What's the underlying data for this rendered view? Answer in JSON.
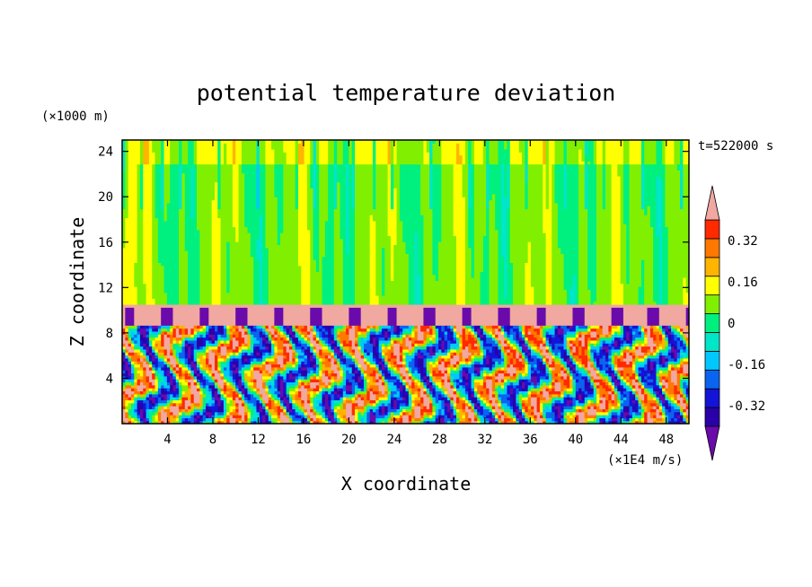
{
  "chart_data": {
    "type": "heatmap",
    "title": "potential temperature deviation",
    "xlabel": "X coordinate",
    "ylabel": "Z coordinate",
    "x_unit": "(×1E4 m/s)",
    "y_unit": "(×1000 m)",
    "time_label": "t=522000 s",
    "xlim": [
      0,
      50
    ],
    "ylim": [
      0,
      25
    ],
    "x_ticks": [
      4,
      8,
      12,
      16,
      20,
      24,
      28,
      32,
      36,
      40,
      44,
      48
    ],
    "y_ticks": [
      4,
      8,
      12,
      16,
      20,
      24
    ],
    "grid": false,
    "colorbar": {
      "levels": [
        -0.48,
        -0.4,
        -0.32,
        -0.24,
        -0.16,
        -0.08,
        0,
        0.08,
        0.16,
        0.24,
        0.32,
        0.4,
        0.48
      ],
      "colors": [
        "#6a0aaa",
        "#2a00a8",
        "#1414d6",
        "#0a64f0",
        "#00c8ff",
        "#00e6c8",
        "#00f080",
        "#80f000",
        "#ffff00",
        "#ffb400",
        "#ff7800",
        "#ff2a00",
        "#f0a8a0"
      ],
      "labels": [
        "0.32",
        "0.16",
        "0",
        "-0.16",
        "-0.32"
      ],
      "label_values": [
        0.32,
        0.16,
        0,
        -0.16,
        -0.32
      ],
      "extend": "both"
    },
    "regions": [
      {
        "layer": "upper",
        "z_range": [
          10.5,
          25
        ],
        "typical_value": 0.05,
        "description_values": [
          0.0,
          0.1,
          -0.05
        ]
      },
      {
        "layer": "inversion",
        "z_range": [
          8.8,
          10.5
        ],
        "typical_value": 0.5
      },
      {
        "layer": "convective",
        "z_range": [
          0,
          8.8
        ],
        "value_range": [
          -0.5,
          0.5
        ]
      }
    ]
  }
}
